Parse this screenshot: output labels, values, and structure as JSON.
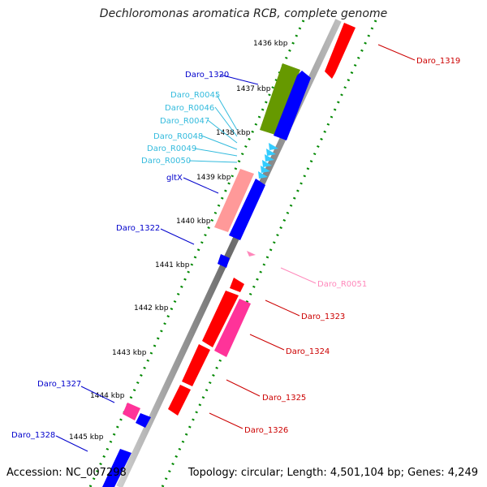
{
  "title": "Dechloromonas aromatica RCB, complete genome",
  "footer": {
    "accession": "Accession: NC_007298",
    "summary": "Topology: circular; Length: 4,501,104 bp; Genes: 4,249"
  },
  "colors": {
    "cds_plus": "#ff0000",
    "cds_minus": "#0000ff",
    "trna": "#33ccff",
    "other_gene": "#ff3399",
    "rrna": "#669900",
    "misc_feature": "#ff9999",
    "tick": "#008800"
  },
  "kbp_labels": [
    "1436 kbp",
    "1437 kbp",
    "1438 kbp",
    "1439 kbp",
    "1440 kbp",
    "1441 kbp",
    "1442 kbp",
    "1443 kbp",
    "1444 kbp",
    "1445 kbp"
  ],
  "genes_left": [
    {
      "label": "Daro_1320",
      "color": "#0000cc"
    },
    {
      "label": "Daro_R0045",
      "color": "#33bbdd"
    },
    {
      "label": "Daro_R0046",
      "color": "#33bbdd"
    },
    {
      "label": "Daro_R0047",
      "color": "#33bbdd"
    },
    {
      "label": "Daro_R0048",
      "color": "#33bbdd"
    },
    {
      "label": "Daro_R0049",
      "color": "#33bbdd"
    },
    {
      "label": "Daro_R0050",
      "color": "#33bbdd"
    },
    {
      "label": "gltX",
      "color": "#0000cc"
    },
    {
      "label": "Daro_1322",
      "color": "#0000cc"
    },
    {
      "label": "Daro_1327",
      "color": "#0000cc"
    },
    {
      "label": "Daro_1328",
      "color": "#0000cc"
    }
  ],
  "genes_right": [
    {
      "label": "Daro_1319",
      "color": "#cc0000"
    },
    {
      "label": "Daro_R0051",
      "color": "#ff88bb"
    },
    {
      "label": "Daro_1323",
      "color": "#cc0000"
    },
    {
      "label": "Daro_1324",
      "color": "#cc0000"
    },
    {
      "label": "Daro_1325",
      "color": "#cc0000"
    },
    {
      "label": "Daro_1326",
      "color": "#cc0000"
    }
  ]
}
